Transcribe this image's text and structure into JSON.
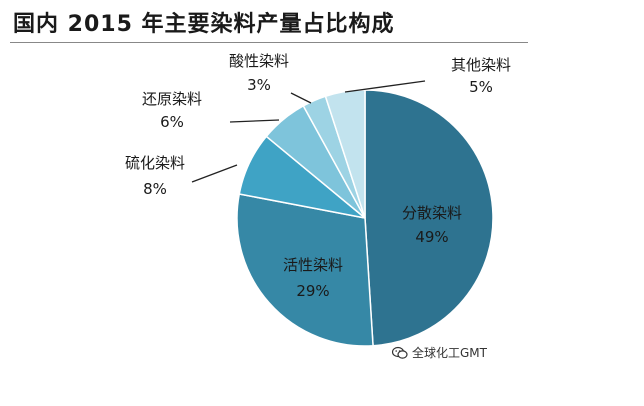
{
  "chart_data": {
    "type": "pie",
    "title": "国内 2015 年主要染料产量占比构成",
    "slices": [
      {
        "name": "分散染料",
        "value": 49,
        "label": "49%",
        "color": "#2e7390"
      },
      {
        "name": "活性染料",
        "value": 29,
        "label": "29%",
        "color": "#3688a6"
      },
      {
        "name": "硫化染料",
        "value": 8,
        "label": "8%",
        "color": "#3fa3c5"
      },
      {
        "name": "还原染料",
        "value": 6,
        "label": "6%",
        "color": "#7ec4db"
      },
      {
        "name": "酸性染料",
        "value": 3,
        "label": "3%",
        "color": "#9dd3e4"
      },
      {
        "name": "其他染料",
        "value": 5,
        "label": "5%",
        "color": "#c2e3ee"
      }
    ]
  },
  "watermark": {
    "text": "全球化工GMT",
    "icon": "wechat-icon"
  }
}
